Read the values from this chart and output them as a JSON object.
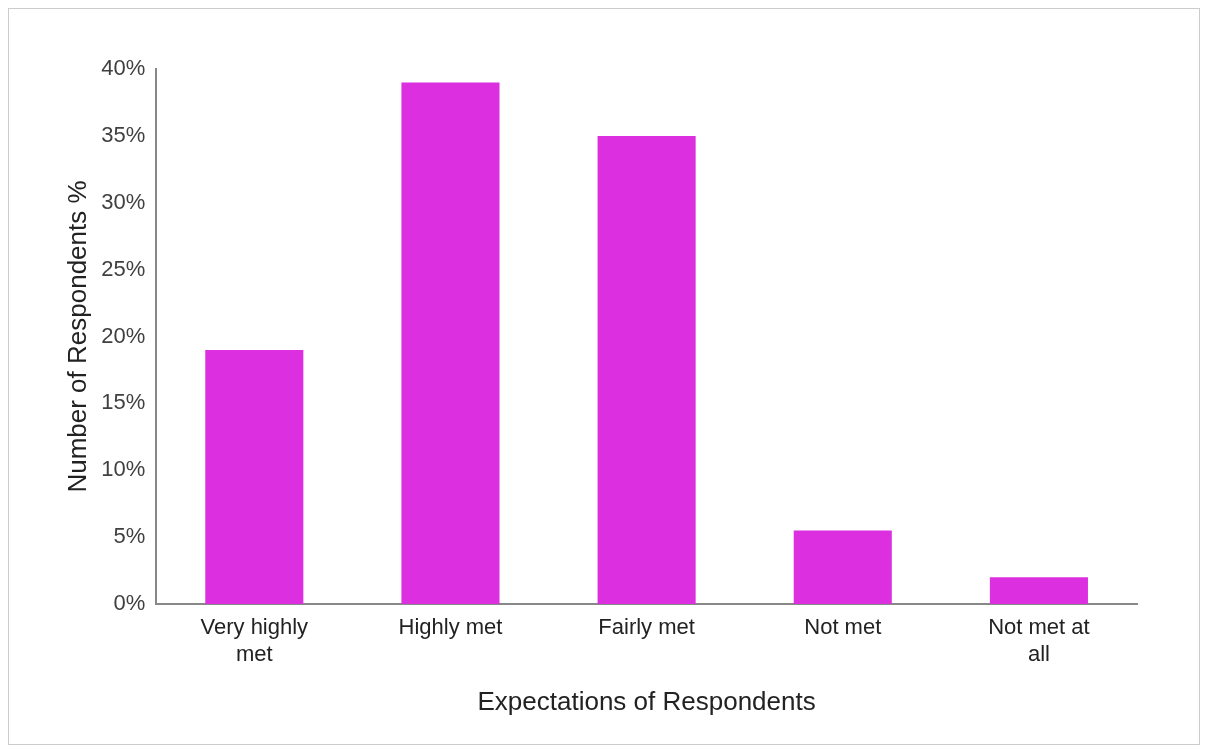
{
  "chart_data": {
    "type": "bar",
    "xlabel": "Expectations of Respondents",
    "ylabel": "Number of Respondents %",
    "categories": [
      "Very highly met",
      "Highly met",
      "Fairly met",
      "Not met",
      "Not met at all"
    ],
    "values": [
      19,
      39,
      35,
      5.5,
      2
    ],
    "color": "#dc2fdf",
    "ylim": [
      0,
      40
    ],
    "yticks": [
      {
        "value": 0,
        "label": "0%"
      },
      {
        "value": 5,
        "label": "5%"
      },
      {
        "value": 10,
        "label": "10%"
      },
      {
        "value": 15,
        "label": "15%"
      },
      {
        "value": 20,
        "label": "20%"
      },
      {
        "value": 25,
        "label": "25%"
      },
      {
        "value": 30,
        "label": "30%"
      },
      {
        "value": 35,
        "label": "35%"
      },
      {
        "value": 40,
        "label": "40%"
      }
    ],
    "grid": false,
    "legend": false
  }
}
